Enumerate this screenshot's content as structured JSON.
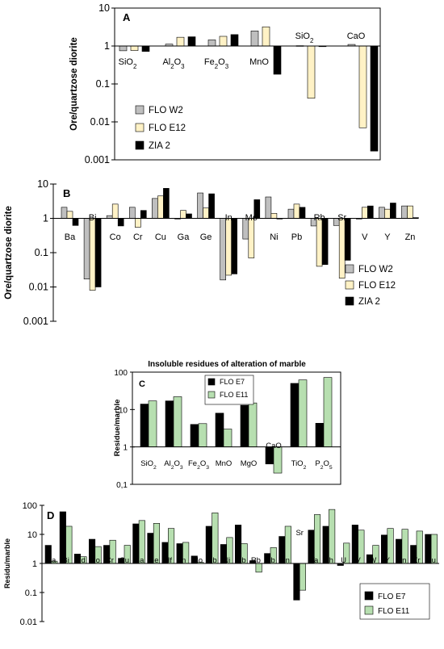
{
  "colors": {
    "w2": "#bfbfbf",
    "e12": "#fff2c6",
    "zia2": "#000000",
    "e7": "#000000",
    "e11": "#b7dfb0"
  },
  "chart_data": [
    {
      "panel": "A",
      "type": "bar",
      "yscale": "log",
      "ylim": [
        0.001,
        10
      ],
      "ylabel": "Ore/quartzose diorite",
      "title": "",
      "yticks": [
        "0.001",
        "0.01",
        "0.1",
        "1",
        "10"
      ],
      "categories": [
        {
          "parts": [
            [
              "SiO",
              ""
            ],
            [
              "2",
              "sub"
            ]
          ]
        },
        {
          "parts": [
            [
              "Al",
              ""
            ],
            [
              "2",
              "sub"
            ],
            [
              "O",
              ""
            ],
            [
              "3",
              "sub"
            ]
          ]
        },
        {
          "parts": [
            [
              "Fe",
              ""
            ],
            [
              "2",
              "sub"
            ],
            [
              "O",
              ""
            ],
            [
              "3",
              "sub"
            ]
          ]
        },
        {
          "parts": [
            [
              "MnO",
              ""
            ]
          ]
        },
        {
          "parts": [
            [
              "SiO",
              ""
            ],
            [
              "2",
              "sub"
            ]
          ]
        },
        {
          "parts": [
            [
              "CaO",
              ""
            ]
          ]
        }
      ],
      "series": [
        {
          "name": "FLO W2",
          "color": "#bfbfbf",
          "values": [
            0.75,
            1.12,
            1.45,
            2.5,
            1.02,
            1.1
          ]
        },
        {
          "name": "FLO E12",
          "color": "#fff2c6",
          "values": [
            0.76,
            1.7,
            1.8,
            3.2,
            0.042,
            0.007
          ]
        },
        {
          "name": "ZIA 2",
          "color": "#000000",
          "values": [
            0.72,
            1.75,
            2.0,
            0.18,
            1.0,
            0.0017
          ]
        }
      ]
    },
    {
      "panel": "B",
      "type": "bar",
      "yscale": "log",
      "ylim": [
        0.001,
        10
      ],
      "ylabel": "Ore/quartzose diorite",
      "title": "",
      "yticks": [
        "0.001",
        "0.01",
        "0.1",
        "1",
        "10"
      ],
      "categories": [
        {
          "parts": [
            [
              "Ba",
              ""
            ]
          ]
        },
        {
          "parts": [
            [
              "Bi",
              ""
            ]
          ]
        },
        {
          "parts": [
            [
              "Co",
              ""
            ]
          ]
        },
        {
          "parts": [
            [
              "Cr",
              ""
            ]
          ]
        },
        {
          "parts": [
            [
              "Cu",
              ""
            ]
          ]
        },
        {
          "parts": [
            [
              "Ga",
              ""
            ]
          ]
        },
        {
          "parts": [
            [
              "Ge",
              ""
            ]
          ]
        },
        {
          "parts": [
            [
              "In",
              ""
            ]
          ]
        },
        {
          "parts": [
            [
              "Mo",
              ""
            ]
          ]
        },
        {
          "parts": [
            [
              "Ni",
              ""
            ]
          ]
        },
        {
          "parts": [
            [
              "Pb",
              ""
            ]
          ]
        },
        {
          "parts": [
            [
              "Rb",
              ""
            ]
          ]
        },
        {
          "parts": [
            [
              "Sr",
              ""
            ]
          ]
        },
        {
          "parts": [
            [
              "V",
              ""
            ]
          ]
        },
        {
          "parts": [
            [
              "Y",
              ""
            ]
          ]
        },
        {
          "parts": [
            [
              "Zn",
              ""
            ]
          ]
        }
      ],
      "series": [
        {
          "name": "FLO W2",
          "color": "#bfbfbf",
          "values": [
            2.1,
            0.017,
            1.2,
            2.1,
            3.8,
            1.0,
            5.5,
            0.016,
            0.25,
            4.2,
            1.85,
            0.6,
            0.62,
            1.0,
            2.1,
            2.3
          ]
        },
        {
          "name": "FLO E12",
          "color": "#fff2c6",
          "values": [
            1.6,
            0.008,
            2.6,
            0.55,
            4.5,
            1.7,
            2.0,
            0.022,
            0.07,
            1.4,
            2.6,
            0.04,
            0.018,
            2.1,
            1.85,
            2.3
          ]
        },
        {
          "name": "ZIA 2",
          "color": "#000000",
          "values": [
            0.62,
            0.01,
            0.6,
            1.7,
            7.5,
            1.35,
            5.2,
            0.024,
            3.5,
            1.0,
            2.1,
            0.045,
            0.06,
            2.3,
            2.8,
            1.05
          ]
        }
      ]
    },
    {
      "panel": "C",
      "type": "bar",
      "yscale": "log",
      "ylim": [
        0.1,
        100
      ],
      "title": "Insoluble residues of alteration of marble",
      "ylabel": "Residue/marble",
      "yticks": [
        "0,1",
        "1",
        "10",
        "100"
      ],
      "categories": [
        {
          "parts": [
            [
              "SiO",
              ""
            ],
            [
              "2",
              "sub"
            ]
          ]
        },
        {
          "parts": [
            [
              "Al",
              ""
            ],
            [
              "2",
              "sub"
            ],
            [
              "O",
              ""
            ],
            [
              "3",
              "sub"
            ]
          ]
        },
        {
          "parts": [
            [
              "Fe",
              ""
            ],
            [
              "2",
              "sub"
            ],
            [
              "O",
              ""
            ],
            [
              "3",
              "sub"
            ]
          ]
        },
        {
          "parts": [
            [
              "MnO",
              ""
            ]
          ]
        },
        {
          "parts": [
            [
              "MgO",
              ""
            ]
          ]
        },
        {
          "parts": [
            [
              "CaO",
              ""
            ]
          ]
        },
        {
          "parts": [
            [
              "TiO",
              ""
            ],
            [
              "2",
              "sub"
            ]
          ]
        },
        {
          "parts": [
            [
              "P",
              ""
            ],
            [
              "2",
              "sub"
            ],
            [
              "O",
              ""
            ],
            [
              "5",
              "sub"
            ]
          ]
        }
      ],
      "series": [
        {
          "name": "FLO E7",
          "color": "#000000",
          "values": [
            14,
            17,
            4,
            8,
            13,
            0.35,
            50,
            4.3
          ]
        },
        {
          "name": "FLO E11",
          "color": "#b7dfb0",
          "values": [
            17,
            22,
            4.2,
            3,
            15,
            0.2,
            62,
            72
          ]
        }
      ]
    },
    {
      "panel": "D",
      "type": "bar",
      "yscale": "log",
      "ylim": [
        0.01,
        100
      ],
      "ylabel": "Residu/marble",
      "title": "",
      "yticks": [
        "0.01",
        "0.1",
        "1",
        "10",
        "100"
      ],
      "categories": [
        {
          "parts": [
            [
              "Ba",
              ""
            ]
          ]
        },
        {
          "parts": [
            [
              "Bi",
              ""
            ]
          ]
        },
        {
          "parts": [
            [
              "Cd",
              ""
            ]
          ]
        },
        {
          "parts": [
            [
              "Co",
              ""
            ]
          ]
        },
        {
          "parts": [
            [
              "Cr",
              ""
            ]
          ]
        },
        {
          "parts": [
            [
              "Cu",
              ""
            ]
          ]
        },
        {
          "parts": [
            [
              "Ga",
              ""
            ]
          ]
        },
        {
          "parts": [
            [
              "Ge",
              ""
            ]
          ]
        },
        {
          "parts": [
            [
              "Hf",
              ""
            ]
          ]
        },
        {
          "parts": [
            [
              "In",
              ""
            ]
          ]
        },
        {
          "parts": [
            [
              "Mo",
              ""
            ]
          ]
        },
        {
          "parts": [
            [
              "Nb",
              ""
            ]
          ]
        },
        {
          "parts": [
            [
              "Ni",
              ""
            ]
          ]
        },
        {
          "parts": [
            [
              "Pb",
              ""
            ]
          ]
        },
        {
          "parts": [
            [
              "Rb",
              ""
            ]
          ]
        },
        {
          "parts": [
            [
              "Sb",
              ""
            ]
          ]
        },
        {
          "parts": [
            [
              "Sn",
              ""
            ]
          ]
        },
        {
          "parts": [
            [
              "Sr",
              ""
            ]
          ]
        },
        {
          "parts": [
            [
              "Ta",
              ""
            ]
          ]
        },
        {
          "parts": [
            [
              "Th",
              ""
            ]
          ]
        },
        {
          "parts": [
            [
              "U",
              ""
            ]
          ]
        },
        {
          "parts": [
            [
              "V",
              ""
            ]
          ]
        },
        {
          "parts": [
            [
              "W",
              ""
            ]
          ]
        },
        {
          "parts": [
            [
              "Y",
              ""
            ]
          ]
        },
        {
          "parts": [
            [
              "Zn",
              ""
            ]
          ]
        },
        {
          "parts": [
            [
              "Zr",
              ""
            ]
          ]
        },
        {
          "parts": [
            [
              "Au",
              ""
            ]
          ]
        }
      ],
      "series": [
        {
          "name": "FLO E7",
          "color": "#000000",
          "values": [
            4.2,
            60,
            2.1,
            6.8,
            4.2,
            1.5,
            23,
            11,
            5.3,
            4.8,
            1.8,
            19,
            4.5,
            21,
            1.25,
            2.2,
            8.5,
            0.055,
            14,
            19,
            0.85,
            21,
            2.0,
            9.5,
            6.8,
            4.2,
            10
          ]
        },
        {
          "name": "FLO E11",
          "color": "#b7dfb0",
          "values": [
            1.2,
            19,
            1.7,
            3.8,
            6.3,
            4.2,
            30,
            24,
            16,
            5.3,
            1.1,
            55,
            7.8,
            4.8,
            0.5,
            3.5,
            19,
            0.12,
            48,
            72,
            5,
            14,
            4.2,
            16,
            15,
            13,
            10
          ]
        }
      ]
    }
  ]
}
